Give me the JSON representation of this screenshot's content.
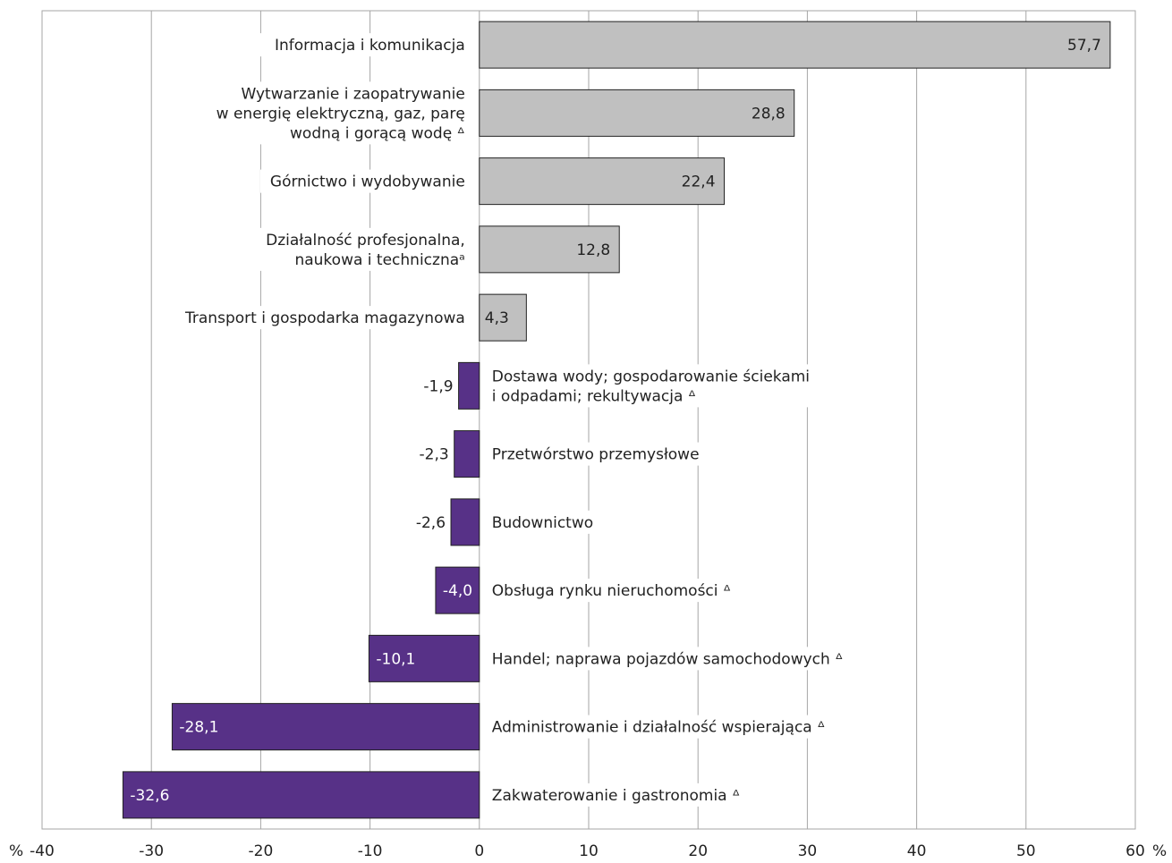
{
  "chart_data": {
    "type": "bar",
    "orientation": "horizontal",
    "categories": [
      [
        "Informacja i komunikacja"
      ],
      [
        "Wytwarzanie i zaopatrywanie",
        "w energię elektryczną, gaz, parę",
        "wodną i gorącą  wodę ᐞ"
      ],
      [
        "Górnictwo i wydobywanie"
      ],
      [
        "Działalność profesjonalna,",
        "naukowa i technicznaᵃ"
      ],
      [
        "Transport i gospodarka magazynowa"
      ],
      [
        "Dostawa wody; gospodarowanie ściekami",
        "i odpadami; rekultywacja ᐞ"
      ],
      [
        "Przetwórstwo przemysłowe"
      ],
      [
        "Budownictwo"
      ],
      [
        "Obsługa rynku nieruchomości ᐞ"
      ],
      [
        "Handel; naprawa pojazdów samochodowych ᐞ"
      ],
      [
        "Administrowanie i działalność wspierająca ᐞ"
      ],
      [
        "Zakwaterowanie i gastronomia ᐞ"
      ]
    ],
    "values": [
      57.7,
      28.8,
      22.4,
      12.8,
      4.3,
      -1.9,
      -2.3,
      -2.6,
      -4.0,
      -10.1,
      -28.1,
      -32.6
    ],
    "value_labels": [
      "57,7",
      "28,8",
      "22,4",
      "12,8",
      "4,3",
      "-1,9",
      "-2,3",
      "-2,6",
      "-4,0",
      "-10,1",
      "-28,1",
      "-32,6"
    ],
    "xlim": [
      -40,
      60
    ],
    "xticks": [
      -40,
      -30,
      -20,
      -10,
      0,
      10,
      20,
      30,
      40,
      50,
      60
    ],
    "xtick_labels": [
      "-40",
      "-30",
      "-20",
      "-10",
      "0",
      "10",
      "20",
      "30",
      "40",
      "50",
      "60"
    ],
    "unit_left": "%",
    "unit_right": "%",
    "grid": true,
    "colors": {
      "positive": "#c0c0c0",
      "negative": "#573187",
      "edge": "#222222",
      "grid": "#a6a6a6"
    }
  }
}
